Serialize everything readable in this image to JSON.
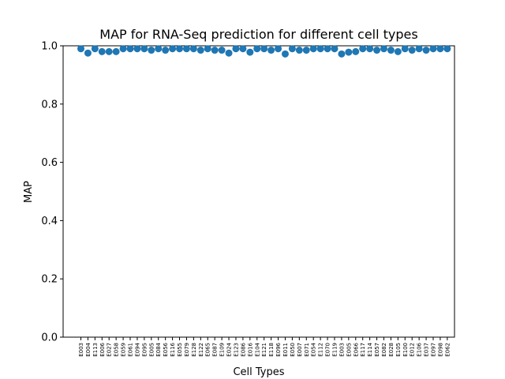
{
  "chart_data": {
    "type": "scatter",
    "title": "MAP for RNA-Seq prediction for different cell types",
    "xlabel": "Cell Types",
    "ylabel": "MAP",
    "ylim": [
      0.0,
      1.0
    ],
    "yticks": [
      "0.0",
      "0.2",
      "0.4",
      "0.6",
      "0.8",
      "1.0"
    ],
    "grid": false,
    "marker_color": "#1f77b4",
    "categories": [
      "E003",
      "E004",
      "E113",
      "E006",
      "E027",
      "E058",
      "E059",
      "E061",
      "E094",
      "E095",
      "E005",
      "E084",
      "E056",
      "E116",
      "E055",
      "E079",
      "E128",
      "E122",
      "E065",
      "E087",
      "E109",
      "E024",
      "E123",
      "E086",
      "E016",
      "E104",
      "E121",
      "E118",
      "E096",
      "E011",
      "E050",
      "E007",
      "E071",
      "E054",
      "E112",
      "E070",
      "E119",
      "E003",
      "E005",
      "E066",
      "E117",
      "E114",
      "E057",
      "E082",
      "E028",
      "E105",
      "E100",
      "E012",
      "E106",
      "E037",
      "E097",
      "E098",
      "E062"
    ],
    "values": [
      0.99,
      0.975,
      0.99,
      0.98,
      0.98,
      0.98,
      0.99,
      0.99,
      0.99,
      0.99,
      0.985,
      0.99,
      0.985,
      0.99,
      0.99,
      0.99,
      0.99,
      0.985,
      0.99,
      0.985,
      0.985,
      0.975,
      0.99,
      0.99,
      0.978,
      0.99,
      0.99,
      0.985,
      0.99,
      0.972,
      0.99,
      0.985,
      0.985,
      0.99,
      0.99,
      0.99,
      0.99,
      0.972,
      0.978,
      0.98,
      0.99,
      0.99,
      0.985,
      0.99,
      0.985,
      0.98,
      0.99,
      0.985,
      0.99,
      0.985,
      0.99,
      0.99,
      0.99
    ]
  }
}
